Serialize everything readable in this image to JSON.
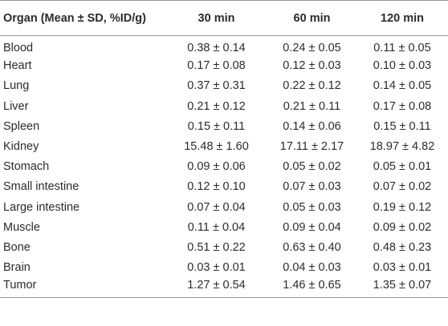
{
  "table": {
    "headers": [
      "Organ (Mean ± SD, %ID/g)",
      "30 min",
      "60 min",
      "120 min"
    ],
    "rows": [
      {
        "organ": "Blood",
        "v30": "0.38 ± 0.14",
        "v60": "0.24 ± 0.05",
        "v120": "0.11 ± 0.05"
      },
      {
        "organ": "Heart",
        "v30": "0.17 ± 0.08",
        "v60": "0.12 ± 0.03",
        "v120": "0.10 ± 0.03"
      },
      {
        "organ": "Lung",
        "v30": "0.37 ± 0.31",
        "v60": "0.22 ± 0.12",
        "v120": "0.14 ± 0.05"
      },
      {
        "organ": "Liver",
        "v30": "0.21 ± 0.12",
        "v60": "0.21 ± 0.11",
        "v120": "0.17 ± 0.08"
      },
      {
        "organ": "Spleen",
        "v30": "0.15 ± 0.11",
        "v60": "0.14 ± 0.06",
        "v120": "0.15 ± 0.11"
      },
      {
        "organ": "Kidney",
        "v30": "15.48 ± 1.60",
        "v60": "17.11 ± 2.17",
        "v120": "18.97 ± 4.82"
      },
      {
        "organ": "Stomach",
        "v30": "0.09 ± 0.06",
        "v60": "0.05 ± 0.02",
        "v120": "0.05 ± 0.01"
      },
      {
        "organ": "Small intestine",
        "v30": "0.12 ± 0.10",
        "v60": "0.07 ± 0.03",
        "v120": "0.07 ± 0.02"
      },
      {
        "organ": "Large intestine",
        "v30": "0.07 ± 0.04",
        "v60": "0.05 ± 0.03",
        "v120": "0.19 ± 0.12"
      },
      {
        "organ": "Muscle",
        "v30": "0.11 ± 0.04",
        "v60": "0.09 ± 0.04",
        "v120": "0.09 ± 0.02"
      },
      {
        "organ": "Bone",
        "v30": "0.51 ± 0.22",
        "v60": "0.63 ± 0.40",
        "v120": "0.48 ± 0.23"
      },
      {
        "organ": "Brain",
        "v30": "0.03 ± 0.01",
        "v60": "0.04 ± 0.03",
        "v120": "0.03 ± 0.01"
      },
      {
        "organ": "Tumor",
        "v30": "1.27 ± 0.54",
        "v60": "1.46 ± 0.65",
        "v120": "1.35 ± 0.07"
      }
    ]
  }
}
